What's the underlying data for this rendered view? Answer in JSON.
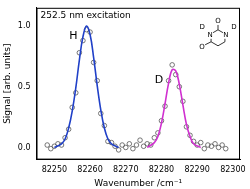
{
  "chart_data": {
    "type": "scatter",
    "x_label": "Wavenumber /cm⁻¹",
    "y_label": "Signal [arb. units]",
    "annotations": [
      "252.5 nm excitation"
    ],
    "inset_labels": [
      "O",
      "D",
      "N",
      "N",
      "D",
      "O"
    ],
    "xlim": [
      82245,
      82302
    ],
    "xticks": [
      82250,
      82260,
      82270,
      82280,
      82290,
      82300
    ],
    "ylim": [
      -0.1,
      1.15
    ],
    "yticks": [
      {
        "value": 0,
        "label": "0.0"
      },
      {
        "value": 0.5,
        "label": "0.5"
      },
      {
        "value": 1,
        "label": "1.0"
      }
    ],
    "grid": false,
    "series": [
      {
        "type": "scatter",
        "marker": "circle",
        "color": "#555555",
        "x": [
          82248,
          82249,
          82250,
          82251,
          82252,
          82253,
          82254,
          82255,
          82256,
          82257,
          82258,
          82259,
          82260,
          82261,
          82262,
          82263,
          82264,
          82265,
          82266,
          82267,
          82268,
          82269,
          82270,
          82271,
          82272,
          82273,
          82274,
          82275,
          82276,
          82277,
          82278,
          82279,
          82280,
          82281,
          82282,
          82283,
          82284,
          82285,
          82286,
          82287,
          82288,
          82289,
          82290,
          82291,
          82292,
          82293,
          82294,
          82295,
          82296,
          82297,
          82298
        ],
        "values": [
          0.02,
          -0.01,
          0.01,
          0.03,
          0.02,
          0.08,
          0.15,
          0.33,
          0.45,
          0.78,
          0.88,
          0.97,
          0.95,
          0.7,
          0.55,
          0.28,
          0.18,
          0.05,
          0.04,
          0.01,
          -0.02,
          0.02,
          0.0,
          0.03,
          -0.01,
          0.02,
          0.06,
          0.01,
          0.03,
          0.02,
          0.08,
          0.12,
          0.22,
          0.34,
          0.55,
          0.68,
          0.6,
          0.5,
          0.38,
          0.17,
          0.1,
          0.05,
          0.02,
          0.04,
          -0.01,
          0.02,
          0.01,
          0.03,
          0.0,
          0.02,
          -0.01
        ]
      },
      {
        "name": "H",
        "type": "line",
        "line_style": "solid",
        "color": "#2040c8",
        "x": [
          82250,
          82252,
          82253,
          82254,
          82255,
          82256,
          82257,
          82258,
          82259,
          82260,
          82261,
          82262,
          82263,
          82264,
          82265,
          82266,
          82268
        ],
        "values": [
          0.0,
          0.03,
          0.07,
          0.16,
          0.3,
          0.49,
          0.72,
          0.91,
          1.0,
          0.93,
          0.74,
          0.51,
          0.31,
          0.16,
          0.07,
          0.03,
          0.0
        ]
      },
      {
        "name": "D",
        "type": "line",
        "line_style": "solid",
        "color": "#d030d0",
        "x": [
          82276,
          82278,
          82279,
          82280,
          82281,
          82282,
          82283,
          82284,
          82285,
          82286,
          82287,
          82288,
          82289,
          82291
        ],
        "values": [
          0.0,
          0.04,
          0.09,
          0.2,
          0.36,
          0.53,
          0.64,
          0.63,
          0.52,
          0.35,
          0.19,
          0.09,
          0.03,
          0.0
        ]
      }
    ]
  }
}
